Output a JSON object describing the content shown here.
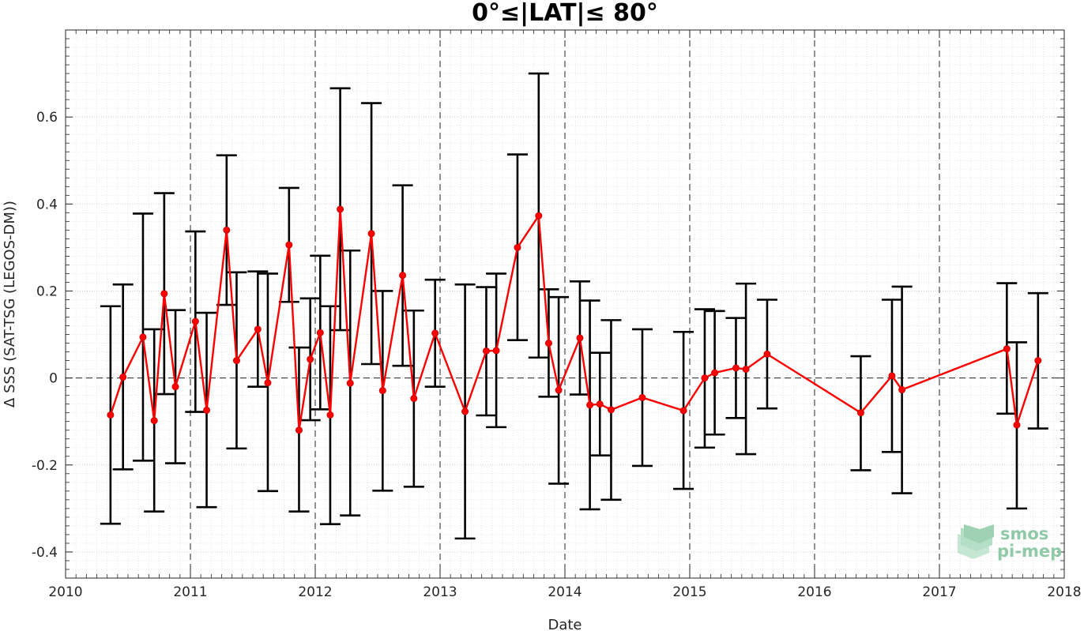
{
  "chart_data": {
    "type": "line",
    "title": "0°≤|LAT|≤ 80°",
    "xlabel": "Date",
    "ylabel": "Δ SSS (SAT-TSG (LEGOS-DM))",
    "xlim": [
      2010,
      2018
    ],
    "ylim": [
      -0.46,
      0.8
    ],
    "x_ticks": [
      2010,
      2011,
      2012,
      2013,
      2014,
      2015,
      2016,
      2017,
      2018
    ],
    "x_tick_labels": [
      "2010",
      "2011",
      "2012",
      "2013",
      "2014",
      "2015",
      "2016",
      "2017",
      "2018"
    ],
    "y_ticks": [
      -0.4,
      -0.2,
      0,
      0.2,
      0.4,
      0.6
    ],
    "y_tick_labels": [
      "-0.4",
      "-0.2",
      "0",
      "0.2",
      "0.4",
      "0.6"
    ],
    "grid": true,
    "zero_line": true,
    "series": [
      {
        "color": "#ff0000",
        "error_bar_color": "#000000",
        "points": [
          {
            "x": 2010.36,
            "y": -0.085,
            "lo": -0.335,
            "hi": 0.165
          },
          {
            "x": 2010.46,
            "y": 0.002,
            "lo": -0.21,
            "hi": 0.215
          },
          {
            "x": 2010.62,
            "y": 0.094,
            "lo": -0.19,
            "hi": 0.378
          },
          {
            "x": 2010.71,
            "y": -0.098,
            "lo": -0.307,
            "hi": 0.112
          },
          {
            "x": 2010.79,
            "y": 0.194,
            "lo": -0.037,
            "hi": 0.425
          },
          {
            "x": 2010.88,
            "y": -0.02,
            "lo": -0.196,
            "hi": 0.156
          },
          {
            "x": 2011.04,
            "y": 0.13,
            "lo": -0.078,
            "hi": 0.337
          },
          {
            "x": 2011.13,
            "y": -0.074,
            "lo": -0.297,
            "hi": 0.15
          },
          {
            "x": 2011.29,
            "y": 0.34,
            "lo": 0.168,
            "hi": 0.512
          },
          {
            "x": 2011.37,
            "y": 0.04,
            "lo": -0.162,
            "hi": 0.243
          },
          {
            "x": 2011.54,
            "y": 0.112,
            "lo": -0.02,
            "hi": 0.245
          },
          {
            "x": 2011.62,
            "y": -0.011,
            "lo": -0.26,
            "hi": 0.24
          },
          {
            "x": 2011.79,
            "y": 0.306,
            "lo": 0.175,
            "hi": 0.437
          },
          {
            "x": 2011.87,
            "y": -0.12,
            "lo": -0.307,
            "hi": 0.07
          },
          {
            "x": 2011.96,
            "y": 0.043,
            "lo": -0.097,
            "hi": 0.183
          },
          {
            "x": 2012.04,
            "y": 0.104,
            "lo": -0.072,
            "hi": 0.281
          },
          {
            "x": 2012.12,
            "y": -0.085,
            "lo": -0.336,
            "hi": 0.165
          },
          {
            "x": 2012.2,
            "y": 0.388,
            "lo": 0.11,
            "hi": 0.666
          },
          {
            "x": 2012.28,
            "y": -0.012,
            "lo": -0.316,
            "hi": 0.293
          },
          {
            "x": 2012.45,
            "y": 0.332,
            "lo": 0.032,
            "hi": 0.632
          },
          {
            "x": 2012.54,
            "y": -0.029,
            "lo": -0.259,
            "hi": 0.2
          },
          {
            "x": 2012.7,
            "y": 0.236,
            "lo": 0.028,
            "hi": 0.443
          },
          {
            "x": 2012.79,
            "y": -0.047,
            "lo": -0.25,
            "hi": 0.155
          },
          {
            "x": 2012.96,
            "y": 0.103,
            "lo": -0.02,
            "hi": 0.226
          },
          {
            "x": 2013.2,
            "y": -0.077,
            "lo": -0.369,
            "hi": 0.215
          },
          {
            "x": 2013.37,
            "y": 0.062,
            "lo": -0.086,
            "hi": 0.209
          },
          {
            "x": 2013.45,
            "y": 0.063,
            "lo": -0.113,
            "hi": 0.24
          },
          {
            "x": 2013.62,
            "y": 0.3,
            "lo": 0.087,
            "hi": 0.514
          },
          {
            "x": 2013.79,
            "y": 0.373,
            "lo": 0.047,
            "hi": 0.7
          },
          {
            "x": 2013.87,
            "y": 0.08,
            "lo": -0.043,
            "hi": 0.204
          },
          {
            "x": 2013.95,
            "y": -0.028,
            "lo": -0.243,
            "hi": 0.186
          },
          {
            "x": 2014.12,
            "y": 0.092,
            "lo": -0.038,
            "hi": 0.222
          },
          {
            "x": 2014.2,
            "y": -0.062,
            "lo": -0.302,
            "hi": 0.178
          },
          {
            "x": 2014.28,
            "y": -0.06,
            "lo": -0.178,
            "hi": 0.058
          },
          {
            "x": 2014.37,
            "y": -0.073,
            "lo": -0.28,
            "hi": 0.133
          },
          {
            "x": 2014.62,
            "y": -0.045,
            "lo": -0.202,
            "hi": 0.112
          },
          {
            "x": 2014.95,
            "y": -0.075,
            "lo": -0.255,
            "hi": 0.106
          },
          {
            "x": 2015.12,
            "y": 0.0,
            "lo": -0.16,
            "hi": 0.158
          },
          {
            "x": 2015.2,
            "y": 0.012,
            "lo": -0.13,
            "hi": 0.154
          },
          {
            "x": 2015.37,
            "y": 0.023,
            "lo": -0.092,
            "hi": 0.138
          },
          {
            "x": 2015.45,
            "y": 0.02,
            "lo": -0.175,
            "hi": 0.217
          },
          {
            "x": 2015.62,
            "y": 0.055,
            "lo": -0.07,
            "hi": 0.18
          },
          {
            "x": 2016.37,
            "y": -0.08,
            "lo": -0.212,
            "hi": 0.05
          },
          {
            "x": 2016.62,
            "y": 0.005,
            "lo": -0.17,
            "hi": 0.18
          },
          {
            "x": 2016.7,
            "y": -0.027,
            "lo": -0.265,
            "hi": 0.21
          },
          {
            "x": 2017.54,
            "y": 0.067,
            "lo": -0.082,
            "hi": 0.218
          },
          {
            "x": 2017.62,
            "y": -0.108,
            "lo": -0.3,
            "hi": 0.082
          },
          {
            "x": 2017.79,
            "y": 0.04,
            "lo": -0.116,
            "hi": 0.195
          }
        ]
      }
    ]
  },
  "logo": {
    "line1": "smos",
    "line2": "pi-mep",
    "color": "#8fc9a7"
  }
}
